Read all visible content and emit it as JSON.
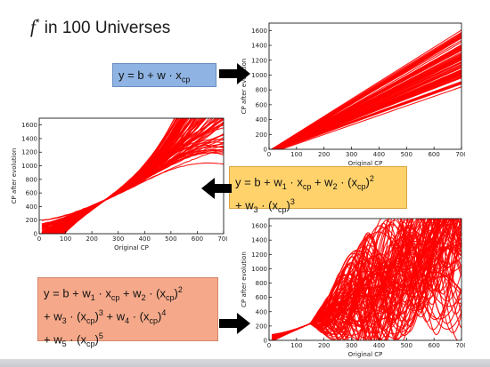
{
  "slide": {
    "title_symbol": "f",
    "title_sup": "*",
    "title_text": " in 100 Universes"
  },
  "formulas": [
    {
      "lines": [
        "y = b + w · x_cp"
      ]
    },
    {
      "lines": [
        "y = b + w_1 · x_cp + w_2 · (x_cp)^2",
        "+ w_3 · (x_cp)^3"
      ]
    },
    {
      "lines": [
        "y = b + w_1 · x_cp + w_2 · (x_cp)^2",
        "+ w_3 · (x_cp)^3 + w_4 · (x_cp)^4",
        "+ w_5 · (x_cp)^5"
      ]
    }
  ],
  "chart_data": [
    {
      "type": "line",
      "model_degree": 1,
      "xlabel": "Original CP",
      "ylabel": "CP after evolution",
      "xlim": [
        0,
        700
      ],
      "ylim": [
        0,
        1700
      ],
      "xticks": [
        0,
        100,
        200,
        300,
        400,
        500,
        600,
        700
      ],
      "yticks": [
        0,
        200,
        400,
        600,
        800,
        1000,
        1200,
        1400,
        1600
      ],
      "series_count": 100,
      "series_color": "#ff0000"
    },
    {
      "type": "line",
      "model_degree": 3,
      "xlabel": "Original CP",
      "ylabel": "CP after evolution",
      "xlim": [
        0,
        700
      ],
      "ylim": [
        0,
        1700
      ],
      "xticks": [
        0,
        100,
        200,
        300,
        400,
        500,
        600,
        700
      ],
      "yticks": [
        0,
        200,
        400,
        600,
        800,
        1000,
        1200,
        1400,
        1600
      ],
      "series_count": 100,
      "series_color": "#ff0000"
    },
    {
      "type": "line",
      "model_degree": 5,
      "xlabel": "Original CP",
      "ylabel": "CP after evolution",
      "xlim": [
        0,
        700
      ],
      "ylim": [
        0,
        1700
      ],
      "xticks": [
        0,
        100,
        200,
        300,
        400,
        500,
        600,
        700
      ],
      "yticks": [
        0,
        200,
        400,
        600,
        800,
        1000,
        1200,
        1400,
        1600
      ],
      "series_count": 100,
      "series_color": "#ff0000"
    }
  ]
}
